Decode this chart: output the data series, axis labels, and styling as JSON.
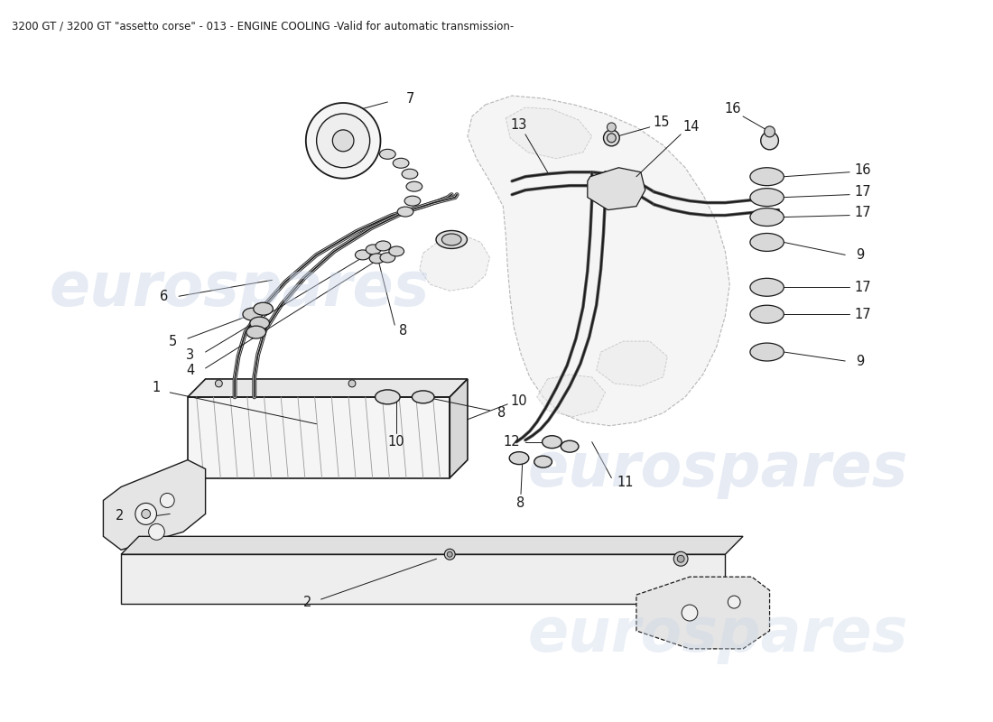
{
  "title": "3200 GT / 3200 GT \"assetto corse\" - 013 - ENGINE COOLING -Valid for automatic transmission-",
  "title_fontsize": 8.5,
  "bg_color": "#ffffff",
  "watermark_text": "eurospares",
  "watermark_color": "#c8d4e8",
  "watermark_fontsize": 48,
  "line_color": "#1a1a1a",
  "engine_color": "#dddddd",
  "engine_edge": "#888888",
  "cooler_fill": "#f0f0f0",
  "cooler_stripe": "#aaaaaa",
  "label_fontsize": 10.5,
  "leader_lw": 0.7
}
